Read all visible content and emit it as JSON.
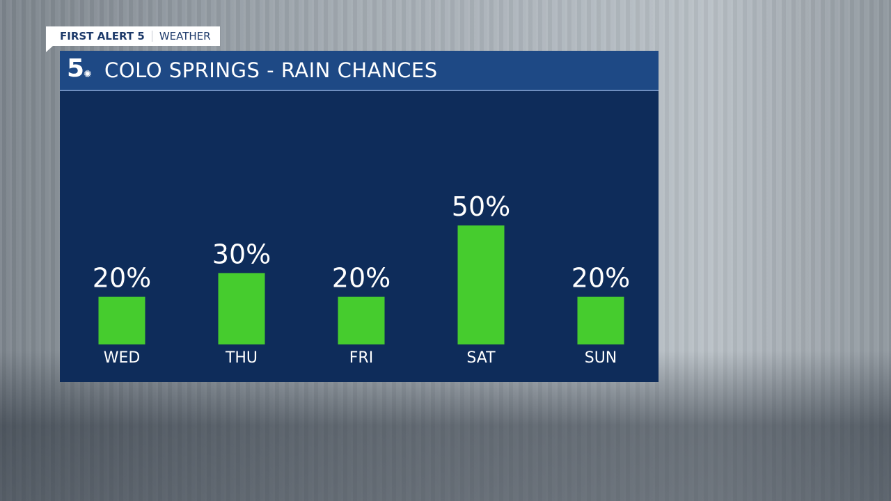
{
  "brand": {
    "tag_bold": "FIRST ALERT 5",
    "tag_light": "WEATHER",
    "logo": "5 NBC"
  },
  "chart_data": {
    "type": "bar",
    "title": "COLO SPRINGS - RAIN CHANCES",
    "categories": [
      "WED",
      "THU",
      "FRI",
      "SAT",
      "SUN"
    ],
    "values": [
      20,
      30,
      20,
      50,
      20
    ],
    "data_labels": [
      "20%",
      "30%",
      "20%",
      "50%",
      "20%"
    ],
    "ylim": [
      0,
      100
    ],
    "grid": false,
    "colors": {
      "bar": "#46cc2e",
      "panel": "#0e2c5a",
      "header": "#1e4985",
      "text": "#ffffff"
    }
  }
}
